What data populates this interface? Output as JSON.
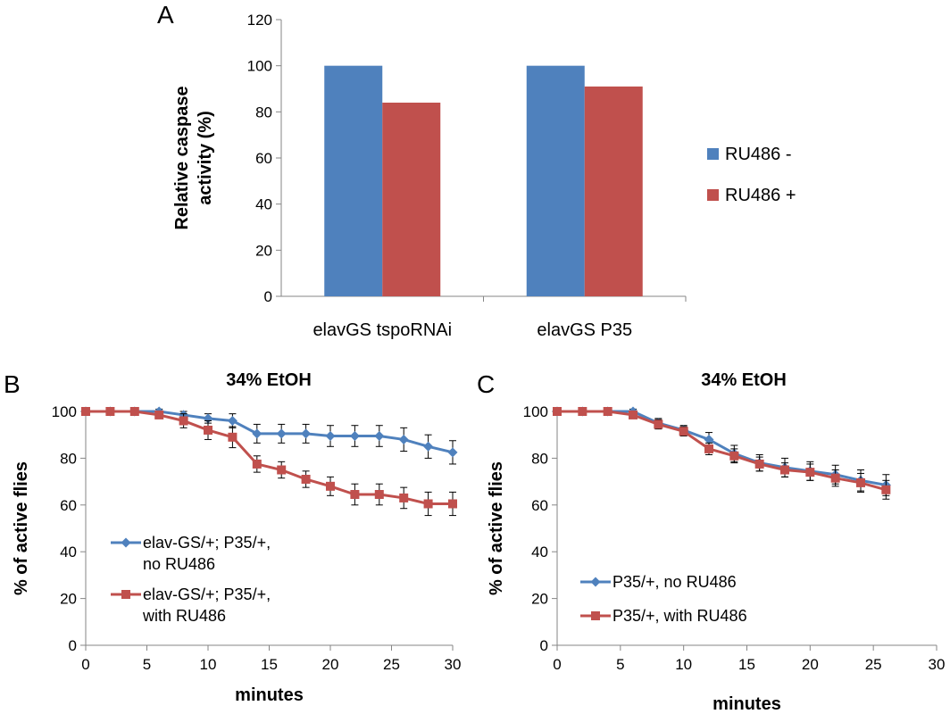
{
  "panel_letters": {
    "a": "A",
    "b": "B",
    "c": "C"
  },
  "chart_data": [
    {
      "id": "A",
      "type": "bar",
      "title": "",
      "xlabel": "",
      "ylabel": "Relative caspase activity (%)",
      "ylabel_lines": [
        "Relative caspase",
        "activity (%)"
      ],
      "ylim": [
        0,
        120
      ],
      "yticks": [
        0,
        20,
        40,
        60,
        80,
        100,
        120
      ],
      "categories": [
        "elavGS tspoRNAi",
        "elavGS P35"
      ],
      "series": [
        {
          "name": "RU486 -",
          "values": [
            100,
            100
          ],
          "color": "#4f81bd"
        },
        {
          "name": "RU486 +",
          "values": [
            84,
            91
          ],
          "color": "#c0504d"
        }
      ],
      "legend": "right",
      "grid": false
    },
    {
      "id": "B",
      "type": "line",
      "title": "34% EtOH",
      "xlabel": "minutes",
      "ylabel": "% of active flies",
      "xlim": [
        0,
        30
      ],
      "ylim": [
        0,
        100
      ],
      "xticks": [
        0,
        5,
        10,
        15,
        20,
        25,
        30
      ],
      "yticks": [
        0,
        20,
        40,
        60,
        80,
        100
      ],
      "legend": "bottom-left",
      "grid": false,
      "series": [
        {
          "name": "elav-GS/+; P35/+, no RU486",
          "legend_lines": [
            "elav-GS/+; P35/+,",
            "no RU486"
          ],
          "marker": "diamond",
          "color": "#4f81bd",
          "x": [
            0,
            2,
            4,
            6,
            8,
            10,
            12,
            14,
            16,
            18,
            20,
            22,
            24,
            26,
            28,
            30
          ],
          "y": [
            100,
            100,
            100,
            100,
            98.5,
            97,
            96,
            90.5,
            90.5,
            90.5,
            89.5,
            89.5,
            89.5,
            88,
            85,
            82.5
          ],
          "err": [
            0,
            0,
            0,
            1,
            1.5,
            2,
            3,
            4,
            4,
            4,
            4.5,
            4.5,
            4.5,
            5,
            5,
            5
          ]
        },
        {
          "name": "elav-GS/+; P35/+, with RU486",
          "legend_lines": [
            "elav-GS/+; P35/+,",
            "with RU486"
          ],
          "marker": "square",
          "color": "#c0504d",
          "x": [
            0,
            2,
            4,
            6,
            8,
            10,
            12,
            14,
            16,
            18,
            20,
            22,
            24,
            26,
            28,
            30
          ],
          "y": [
            100,
            100,
            100,
            98.5,
            96,
            92,
            89,
            77.5,
            75,
            71,
            68,
            64.5,
            64.5,
            63,
            60.5,
            60.5
          ],
          "err": [
            0,
            0,
            0,
            1,
            3,
            4,
            4.5,
            3.5,
            3.5,
            3.5,
            4,
            4.5,
            4.5,
            4.5,
            5,
            5
          ]
        }
      ]
    },
    {
      "id": "C",
      "type": "line",
      "title": "34% EtOH",
      "xlabel": "minutes",
      "ylabel": "% of active flies",
      "xlim": [
        0,
        30
      ],
      "ylim": [
        0,
        100
      ],
      "xticks": [
        0,
        5,
        10,
        15,
        20,
        25,
        30
      ],
      "yticks": [
        0,
        20,
        40,
        60,
        80,
        100
      ],
      "legend": "bottom-left",
      "grid": false,
      "series": [
        {
          "name": "P35/+, no RU486",
          "legend_lines": [
            "P35/+, no RU486"
          ],
          "marker": "diamond",
          "color": "#4f81bd",
          "x": [
            0,
            2,
            4,
            6,
            8,
            10,
            12,
            14,
            16,
            18,
            20,
            22,
            24,
            26
          ],
          "y": [
            100,
            100,
            100,
            100,
            95,
            92,
            88,
            82,
            78,
            76,
            74.5,
            73,
            70.5,
            68.5
          ],
          "err": [
            0,
            0,
            0,
            1,
            2,
            2,
            3,
            3.5,
            3.5,
            4,
            4,
            4,
            4.5,
            4.5
          ]
        },
        {
          "name": "P35/+, with RU486",
          "legend_lines": [
            "P35/+, with RU486"
          ],
          "marker": "square",
          "color": "#c0504d",
          "x": [
            0,
            2,
            4,
            6,
            8,
            10,
            12,
            14,
            16,
            18,
            20,
            22,
            24,
            26
          ],
          "y": [
            100,
            100,
            100,
            98.5,
            94.5,
            91.5,
            84,
            81,
            77.5,
            75,
            74,
            71.5,
            69.5,
            66.5
          ],
          "err": [
            0,
            0,
            0,
            1,
            2,
            2,
            2.5,
            3,
            3,
            3,
            3.5,
            3.5,
            4,
            4
          ]
        }
      ]
    }
  ]
}
